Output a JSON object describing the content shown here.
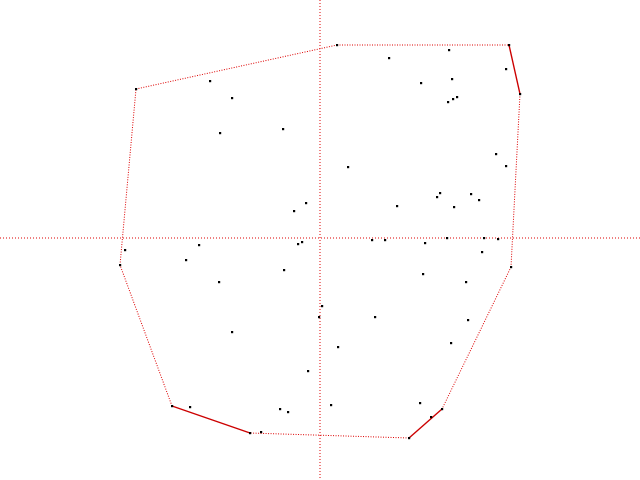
{
  "colors": {
    "axis": "#dd0000",
    "hull": "#dd0000",
    "hull_emphasis": "#cc0000",
    "points": "#000000",
    "background": "#ffffff"
  },
  "points": [
    [
      136,
      89
    ],
    [
      337,
      45
    ],
    [
      509,
      45
    ],
    [
      520,
      94
    ],
    [
      511,
      267
    ],
    [
      442,
      409
    ],
    [
      409,
      438
    ],
    [
      250,
      433
    ],
    [
      172,
      406
    ],
    [
      120,
      265
    ],
    [
      389,
      58
    ],
    [
      449,
      50
    ],
    [
      506,
      69
    ],
    [
      210,
      81
    ],
    [
      232,
      98
    ],
    [
      421,
      83
    ],
    [
      452,
      79
    ],
    [
      457,
      97
    ],
    [
      453,
      99
    ],
    [
      448,
      102
    ],
    [
      220,
      133
    ],
    [
      283,
      129
    ],
    [
      496,
      154
    ],
    [
      506,
      166
    ],
    [
      348,
      167
    ],
    [
      440,
      193
    ],
    [
      437,
      197
    ],
    [
      471,
      194
    ],
    [
      479,
      200
    ],
    [
      454,
      207
    ],
    [
      306,
      203
    ],
    [
      294,
      211
    ],
    [
      397,
      206
    ],
    [
      125,
      250
    ],
    [
      199,
      245
    ],
    [
      298,
      244
    ],
    [
      302,
      242
    ],
    [
      372,
      240
    ],
    [
      385,
      240
    ],
    [
      425,
      243
    ],
    [
      447,
      238
    ],
    [
      484,
      238
    ],
    [
      498,
      239
    ],
    [
      482,
      252
    ],
    [
      186,
      260
    ],
    [
      284,
      270
    ],
    [
      423,
      274
    ],
    [
      219,
      282
    ],
    [
      466,
      282
    ],
    [
      322,
      306
    ],
    [
      319,
      317
    ],
    [
      375,
      317
    ],
    [
      468,
      320
    ],
    [
      232,
      332
    ],
    [
      338,
      347
    ],
    [
      451,
      343
    ],
    [
      308,
      371
    ],
    [
      190,
      407
    ],
    [
      280,
      409
    ],
    [
      288,
      412
    ],
    [
      331,
      405
    ],
    [
      420,
      403
    ],
    [
      431,
      417
    ],
    [
      261,
      432
    ]
  ],
  "hull": {
    "vertices": [
      [
        136,
        89
      ],
      [
        337,
        45
      ],
      [
        509,
        45
      ],
      [
        520,
        94
      ],
      [
        511,
        267
      ],
      [
        442,
        409
      ],
      [
        409,
        438
      ],
      [
        250,
        433
      ],
      [
        172,
        406
      ],
      [
        120,
        265
      ]
    ],
    "emphasized_edges": [
      [
        2,
        3
      ],
      [
        5,
        6
      ],
      [
        7,
        8
      ]
    ]
  }
}
